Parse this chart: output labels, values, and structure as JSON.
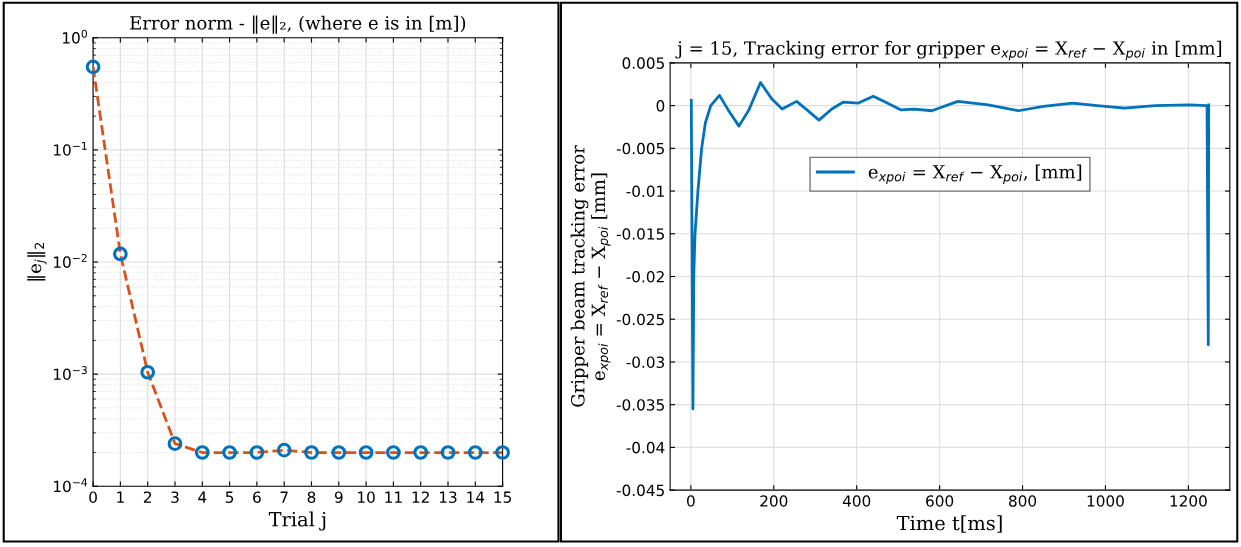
{
  "chart_data": [
    {
      "type": "line",
      "title": "Error norm - ‖e‖₂, (where e is in [m])",
      "xlabel": "Trial j",
      "ylabel": "‖e$_{j}$‖$_{2}$",
      "x": [
        0,
        1,
        2,
        3,
        4,
        5,
        6,
        7,
        8,
        9,
        10,
        11,
        12,
        13,
        14,
        15
      ],
      "series": [
        {
          "type": "line",
          "color": "#d95319",
          "line_style": "dashed",
          "marker": "none",
          "values": [
            0.55,
            0.0118,
            0.00104,
            0.00024,
            0.0002,
            0.0002,
            0.0002,
            0.00021,
            0.0002,
            0.0002,
            0.0002,
            0.0002,
            0.0002,
            0.0002,
            0.0002,
            0.0002
          ]
        },
        {
          "type": "scatter",
          "color": "#0072bd",
          "marker": "circle",
          "values": [
            0.55,
            0.0118,
            0.00104,
            0.00024,
            0.0002,
            0.0002,
            0.0002,
            0.00021,
            0.0002,
            0.0002,
            0.0002,
            0.0002,
            0.0002,
            0.0002,
            0.0002,
            0.0002
          ]
        }
      ],
      "log": "y",
      "xlim": [
        0,
        15
      ],
      "xticks": [
        0,
        1,
        2,
        3,
        4,
        5,
        6,
        7,
        8,
        9,
        10,
        11,
        12,
        13,
        14,
        15
      ],
      "ylim": [
        0.0001,
        1
      ],
      "yticks": [
        {
          "value": 0.0001,
          "label": "10$^{−4}$"
        },
        {
          "value": 0.001,
          "label": "10$^{−3}$"
        },
        {
          "value": 0.01,
          "label": "10$^{−2}$"
        },
        {
          "value": 0.1,
          "label": "10$^{−1}$"
        },
        {
          "value": 1,
          "label": "10$^{0}$"
        }
      ],
      "grid": true,
      "legend": false
    },
    {
      "type": "line",
      "title": "j = 15, Tracking error for gripper e$_{xpoi}$ = X$_{ref}$ − X$_{poi}$ in [mm]",
      "xlabel": "Time t[ms]",
      "ylabel": "Gripper beam tracking error\ne$_{xpoi}$ = X$_{ref}$ − X$_{poi}$ [mm]",
      "series": [
        {
          "name": "e$_{xpoi}$ = X$_{ref}$ − X$_{poi}$, [mm]",
          "color": "#0072bd",
          "line_style": "solid",
          "marker": "none",
          "x": [
            1,
            5,
            7,
            10,
            17,
            26,
            35,
            48,
            69,
            90,
            116,
            140,
            168,
            195,
            220,
            255,
            280,
            309,
            340,
            367,
            404,
            440,
            470,
            507,
            539,
            581,
            644,
            717,
            790,
            850,
            921,
            980,
            1046,
            1120,
            1203,
            1245,
            1248,
            1249
          ],
          "values": [
            0.0006,
            -0.0355,
            -0.02,
            -0.015,
            -0.01,
            -0.005,
            -0.002,
            0,
            0.0012,
            -0.0005,
            -0.0024,
            -0.0005,
            0.0027,
            0.0008,
            -0.0004,
            0.0005,
            -0.0005,
            -0.0017,
            -0.0004,
            0.0004,
            0.0003,
            0.0011,
            0.0004,
            -0.0005,
            -0.0004,
            -0.0006,
            0.0005,
            0.0001,
            -0.0006,
            -0.0001,
            0.0003,
            0,
            -0.0003,
            0,
            0.0001,
            0,
            -0.028,
            0.0001
          ]
        }
      ],
      "xlim": [
        -50,
        1300
      ],
      "xticks": [
        0,
        200,
        400,
        600,
        800,
        1000,
        1200
      ],
      "ylim": [
        -0.045,
        0.005
      ],
      "yticks": [
        -0.045,
        -0.04,
        -0.035,
        -0.03,
        -0.025,
        -0.02,
        -0.015,
        -0.01,
        -0.005,
        0,
        0.005
      ],
      "grid": true,
      "legend": "top"
    }
  ]
}
